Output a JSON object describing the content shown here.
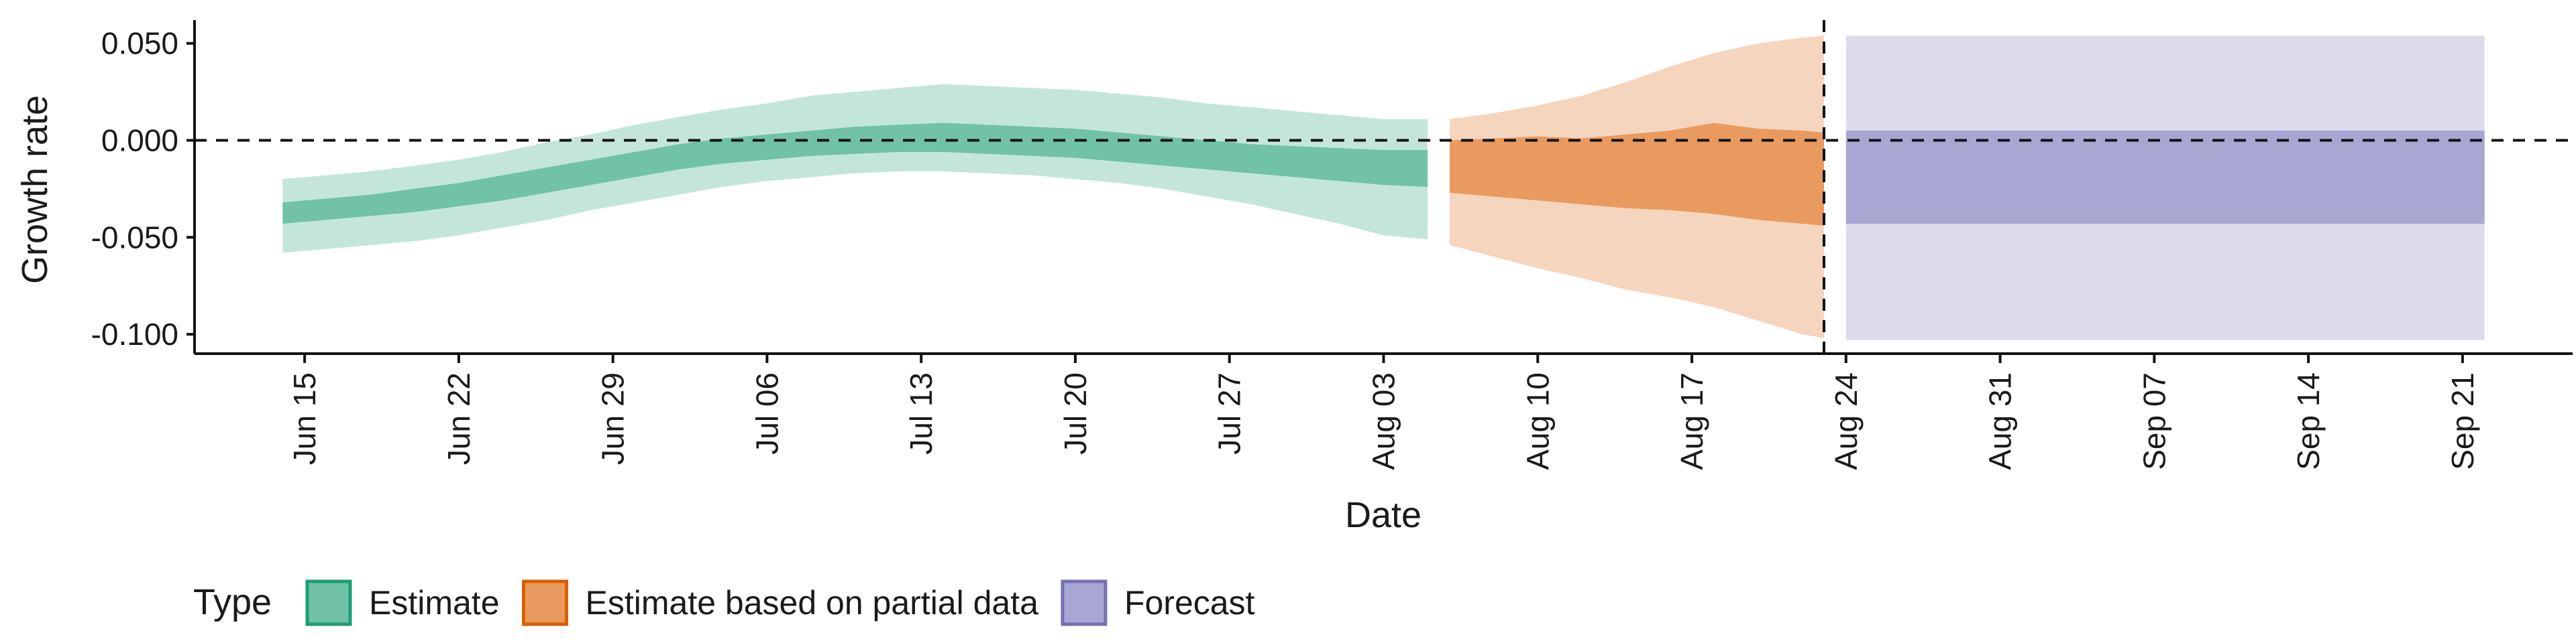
{
  "chart_data": {
    "type": "area",
    "xlabel": "Date",
    "ylabel": "Growth rate",
    "ylim": [
      -0.11,
      0.062
    ],
    "xlim": [
      "2020-06-10",
      "2020-09-26"
    ],
    "y_ticks": [
      {
        "value": 0.05,
        "label": "0.050"
      },
      {
        "value": 0.0,
        "label": "0.000"
      },
      {
        "value": -0.05,
        "label": "-0.050"
      },
      {
        "value": -0.1,
        "label": "-0.100"
      }
    ],
    "x_ticks": [
      {
        "date": "2020-06-15",
        "label": "Jun 15"
      },
      {
        "date": "2020-06-22",
        "label": "Jun 22"
      },
      {
        "date": "2020-06-29",
        "label": "Jun 29"
      },
      {
        "date": "2020-07-06",
        "label": "Jul 06"
      },
      {
        "date": "2020-07-13",
        "label": "Jul 13"
      },
      {
        "date": "2020-07-20",
        "label": "Jul 20"
      },
      {
        "date": "2020-07-27",
        "label": "Jul 27"
      },
      {
        "date": "2020-08-03",
        "label": "Aug 03"
      },
      {
        "date": "2020-08-10",
        "label": "Aug 10"
      },
      {
        "date": "2020-08-17",
        "label": "Aug 17"
      },
      {
        "date": "2020-08-24",
        "label": "Aug 24"
      },
      {
        "date": "2020-08-31",
        "label": "Aug 31"
      },
      {
        "date": "2020-09-07",
        "label": "Sep 07"
      },
      {
        "date": "2020-09-14",
        "label": "Sep 14"
      },
      {
        "date": "2020-09-21",
        "label": "Sep 21"
      }
    ],
    "reference_lines": {
      "horizontal_y": 0.0,
      "vertical_date": "2020-08-23"
    },
    "grid": false,
    "legend": {
      "title": "Type",
      "placement": "bottom-left",
      "entries": [
        {
          "label": "Estimate",
          "fill": "#71c2a6",
          "stroke": "#1b9e77"
        },
        {
          "label": "Estimate based on partial data",
          "fill": "#e99a5e",
          "stroke": "#d95f02"
        },
        {
          "label": "Forecast",
          "fill": "#a8a6d3",
          "stroke": "#7570b3"
        }
      ]
    },
    "series": [
      {
        "name": "Estimate",
        "inner_color": "#71c2a6",
        "outer_color": "#c4e6da",
        "x": [
          "2020-06-14",
          "2020-06-16",
          "2020-06-18",
          "2020-06-20",
          "2020-06-22",
          "2020-06-24",
          "2020-06-26",
          "2020-06-28",
          "2020-06-30",
          "2020-07-02",
          "2020-07-04",
          "2020-07-06",
          "2020-07-08",
          "2020-07-10",
          "2020-07-12",
          "2020-07-14",
          "2020-07-16",
          "2020-07-18",
          "2020-07-20",
          "2020-07-22",
          "2020-07-24",
          "2020-07-26",
          "2020-07-28",
          "2020-07-30",
          "2020-08-01",
          "2020-08-03",
          "2020-08-05"
        ],
        "outer_upper": [
          -0.02,
          -0.018,
          -0.016,
          -0.013,
          -0.01,
          -0.006,
          -0.001,
          0.003,
          0.008,
          0.012,
          0.016,
          0.019,
          0.023,
          0.025,
          0.027,
          0.029,
          0.028,
          0.027,
          0.026,
          0.024,
          0.022,
          0.019,
          0.017,
          0.015,
          0.013,
          0.011,
          0.011
        ],
        "inner_upper": [
          -0.032,
          -0.03,
          -0.028,
          -0.025,
          -0.022,
          -0.018,
          -0.014,
          -0.01,
          -0.006,
          -0.002,
          0.001,
          0.003,
          0.005,
          0.007,
          0.008,
          0.009,
          0.008,
          0.007,
          0.006,
          0.004,
          0.002,
          0.0,
          -0.002,
          -0.003,
          -0.004,
          -0.005,
          -0.005
        ],
        "inner_lower": [
          -0.043,
          -0.041,
          -0.039,
          -0.037,
          -0.034,
          -0.031,
          -0.027,
          -0.023,
          -0.019,
          -0.015,
          -0.012,
          -0.01,
          -0.008,
          -0.007,
          -0.006,
          -0.006,
          -0.007,
          -0.008,
          -0.009,
          -0.011,
          -0.013,
          -0.015,
          -0.017,
          -0.019,
          -0.021,
          -0.023,
          -0.024
        ],
        "outer_lower": [
          -0.058,
          -0.056,
          -0.054,
          -0.052,
          -0.049,
          -0.045,
          -0.041,
          -0.036,
          -0.032,
          -0.028,
          -0.024,
          -0.021,
          -0.019,
          -0.017,
          -0.016,
          -0.016,
          -0.017,
          -0.018,
          -0.02,
          -0.022,
          -0.025,
          -0.029,
          -0.033,
          -0.038,
          -0.043,
          -0.049,
          -0.051
        ]
      },
      {
        "name": "Estimate based on partial data",
        "inner_color": "#e99a5e",
        "outer_color": "#f5d5be",
        "x": [
          "2020-08-06",
          "2020-08-08",
          "2020-08-10",
          "2020-08-12",
          "2020-08-14",
          "2020-08-16",
          "2020-08-18",
          "2020-08-20",
          "2020-08-22",
          "2020-08-23"
        ],
        "outer_upper": [
          0.011,
          0.014,
          0.018,
          0.023,
          0.03,
          0.038,
          0.045,
          0.05,
          0.053,
          0.054
        ],
        "inner_upper": [
          0.0,
          0.001,
          0.002,
          0.001,
          0.003,
          0.005,
          0.009,
          0.006,
          0.005,
          0.004
        ],
        "inner_lower": [
          -0.027,
          -0.029,
          -0.031,
          -0.033,
          -0.035,
          -0.036,
          -0.038,
          -0.041,
          -0.043,
          -0.044
        ],
        "outer_lower": [
          -0.054,
          -0.06,
          -0.066,
          -0.071,
          -0.077,
          -0.081,
          -0.086,
          -0.093,
          -0.1,
          -0.102
        ]
      },
      {
        "name": "Forecast",
        "inner_color": "#a8a6d3",
        "outer_color": "#dcdbec",
        "x": [
          "2020-08-24",
          "2020-09-22"
        ],
        "outer_upper": [
          0.054,
          0.054
        ],
        "inner_upper": [
          0.005,
          0.005
        ],
        "inner_lower": [
          -0.043,
          -0.043
        ],
        "outer_lower": [
          -0.103,
          -0.103
        ]
      }
    ]
  }
}
